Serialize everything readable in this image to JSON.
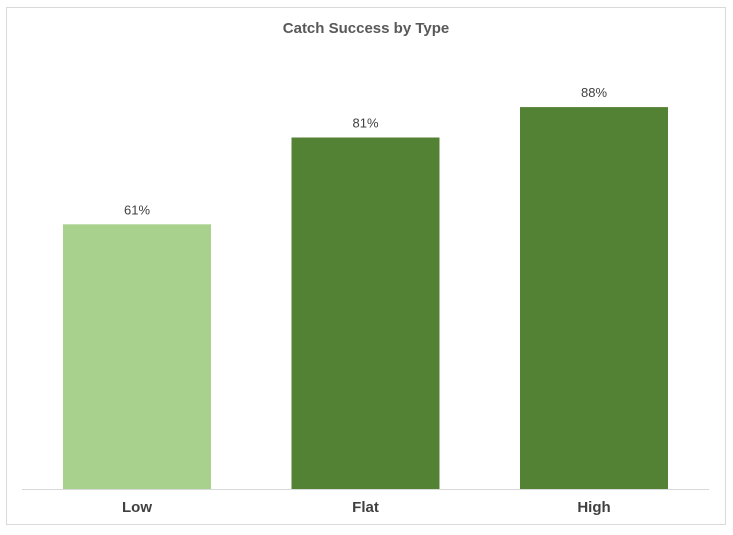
{
  "chart_data": {
    "type": "bar",
    "title": "Catch Success by Type",
    "xlabel": "",
    "ylabel": "",
    "categories": [
      "Low",
      "Flat",
      "High"
    ],
    "values": [
      61,
      81,
      88
    ],
    "data_labels": [
      "61%",
      "81%",
      "88%"
    ],
    "value_unit": "%",
    "ylim": [
      0,
      100
    ],
    "grid": false,
    "legend": "none",
    "colors": [
      "#a9d18e",
      "#548235",
      "#548235"
    ]
  }
}
